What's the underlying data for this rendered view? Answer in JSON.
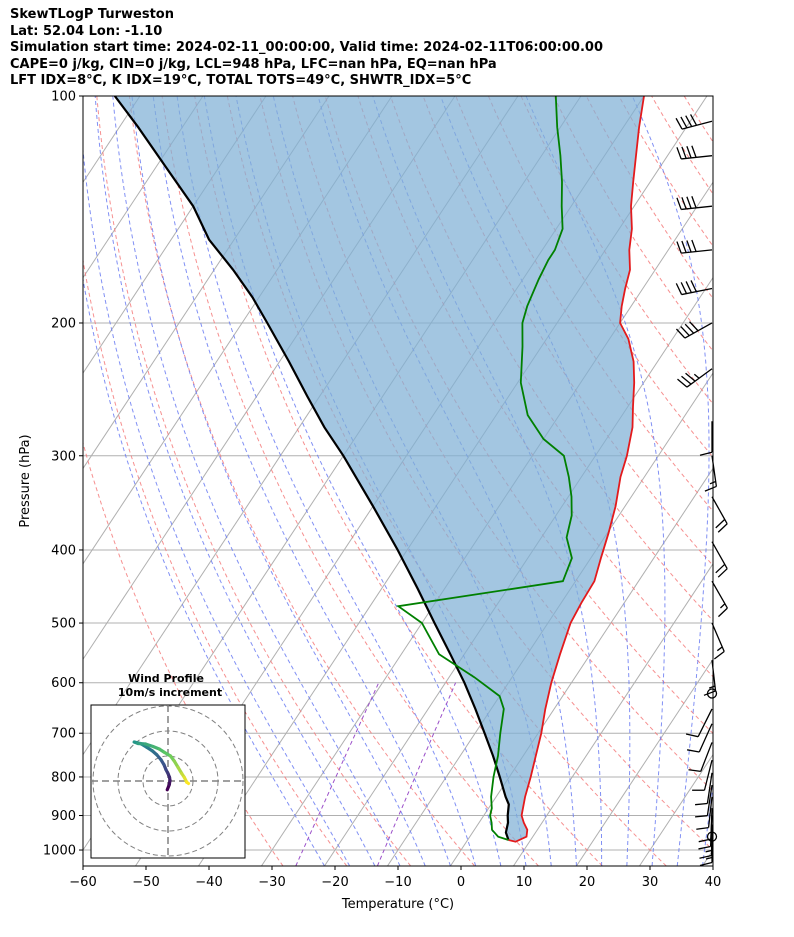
{
  "header": {
    "title": "SkewTLogP Turweston",
    "location": "Lat: 52.04   Lon: -1.10",
    "times": "Simulation start time: 2024-02-11_00:00:00, Valid time: 2024-02-11T06:00:00.00",
    "params": "CAPE=0 j/kg, CIN=0 j/kg, LCL=948 hPa, LFC=nan hPa, EQ=nan hPa",
    "indices": "LFT IDX=8°C, K IDX=19°C, TOTAL TOTS=49°C, SHWTR_IDX=5°C"
  },
  "chart_data": {
    "type": "line",
    "subtype": "skew-t log-p",
    "xlabel": "Temperature (°C)",
    "ylabel": "Pressure (hPa)",
    "xlim": [
      -60,
      40
    ],
    "ylim": [
      1050,
      100
    ],
    "y_scale": "log",
    "x_ticks": [
      -60,
      -50,
      -40,
      -30,
      -20,
      -10,
      0,
      10,
      20,
      30,
      40
    ],
    "x_tick_labels": [
      "−60",
      "−50",
      "−40",
      "−30",
      "−20",
      "−10",
      "0",
      "10",
      "20",
      "30",
      "40"
    ],
    "y_ticks": [
      1000,
      900,
      800,
      700,
      600,
      500,
      400,
      300,
      200,
      100
    ],
    "y_tick_labels": [
      "1000",
      "900",
      "800",
      "700",
      "600",
      "500",
      "400",
      "300",
      "200",
      "100"
    ],
    "grid": true,
    "colors": {
      "temperature": "#e31a1c",
      "dewpoint": "#008000",
      "parcel": "#000000",
      "cape_fill": "#7fb0d6",
      "dry_adiabat": "#f47c7c",
      "moist_adiabat": "#6b7cf2",
      "mixing_ratio": "#9b4fc9",
      "isotherm": "#b0b0b0"
    },
    "series": [
      {
        "key": "temperature",
        "points": [
          [
            6.5,
            970
          ],
          [
            7.8,
            975
          ],
          [
            9.0,
            960
          ],
          [
            8.4,
            940
          ],
          [
            7.1,
            920
          ],
          [
            6.0,
            900
          ],
          [
            4.6,
            850
          ],
          [
            3.4,
            800
          ],
          [
            2.0,
            750
          ],
          [
            0.5,
            700
          ],
          [
            -1.4,
            650
          ],
          [
            -3.2,
            600
          ],
          [
            -4.8,
            550
          ],
          [
            -6.4,
            500
          ],
          [
            -6.8,
            470
          ],
          [
            -7.0,
            440
          ],
          [
            -8.4,
            410
          ],
          [
            -9.8,
            380
          ],
          [
            -11.5,
            350
          ],
          [
            -13.8,
            320
          ],
          [
            -15.0,
            300
          ],
          [
            -17.1,
            275
          ],
          [
            -19.2,
            258
          ],
          [
            -21.5,
            240
          ],
          [
            -23.8,
            225
          ],
          [
            -27.0,
            210
          ],
          [
            -30.0,
            200
          ],
          [
            -31.5,
            190
          ],
          [
            -32.8,
            180
          ],
          [
            -34.0,
            170
          ],
          [
            -36.2,
            160
          ],
          [
            -38.0,
            150
          ],
          [
            -40.5,
            140
          ],
          [
            -42.7,
            130
          ],
          [
            -45.0,
            120
          ],
          [
            -47.5,
            110
          ],
          [
            -50.0,
            100
          ]
        ]
      },
      {
        "key": "dewpoint",
        "points": [
          [
            6.5,
            970
          ],
          [
            4.5,
            960
          ],
          [
            2.8,
            940
          ],
          [
            2.0,
            920
          ],
          [
            1.0,
            900
          ],
          [
            0.5,
            880
          ],
          [
            -0.8,
            850
          ],
          [
            -2.5,
            800
          ],
          [
            -4.0,
            750
          ],
          [
            -6.0,
            700
          ],
          [
            -8.0,
            650
          ],
          [
            -10.0,
            625
          ],
          [
            -16.0,
            590
          ],
          [
            -24.0,
            550
          ],
          [
            -30.0,
            500
          ],
          [
            -35.5,
            475
          ],
          [
            -12.0,
            440
          ],
          [
            -13.0,
            410
          ],
          [
            -16.0,
            385
          ],
          [
            -17.5,
            360
          ],
          [
            -19.5,
            340
          ],
          [
            -22.0,
            320
          ],
          [
            -25.0,
            300
          ],
          [
            -30.0,
            285
          ],
          [
            -35.0,
            265
          ],
          [
            -39.5,
            240
          ],
          [
            -43.0,
            215
          ],
          [
            -45.5,
            200
          ],
          [
            -46.5,
            190
          ],
          [
            -47.5,
            175
          ],
          [
            -48.0,
            165
          ],
          [
            -48.0,
            160
          ],
          [
            -49.0,
            150
          ],
          [
            -51.5,
            140
          ],
          [
            -54.0,
            130
          ],
          [
            -57.0,
            120
          ],
          [
            -60.5,
            110
          ],
          [
            -64.0,
            100
          ]
        ]
      },
      {
        "key": "parcel",
        "points": [
          [
            6.5,
            970
          ],
          [
            5.3,
            948
          ],
          [
            4.6,
            920
          ],
          [
            3.8,
            900
          ],
          [
            2.8,
            870
          ],
          [
            1.5,
            850
          ],
          [
            -1.5,
            800
          ],
          [
            -4.8,
            750
          ],
          [
            -8.5,
            700
          ],
          [
            -12.5,
            650
          ],
          [
            -17.0,
            600
          ],
          [
            -22.2,
            550
          ],
          [
            -28.0,
            500
          ],
          [
            -34.3,
            450
          ],
          [
            -41.5,
            400
          ],
          [
            -50.0,
            350
          ],
          [
            -60.0,
            300
          ],
          [
            -66.0,
            275
          ],
          [
            -72.0,
            250
          ],
          [
            -78.5,
            225
          ],
          [
            -86.0,
            200
          ],
          [
            -91.0,
            185
          ],
          [
            -97.0,
            170
          ],
          [
            -104.0,
            155
          ],
          [
            -110.0,
            140
          ],
          [
            -118.0,
            125
          ],
          [
            -127.0,
            110
          ],
          [
            -134.0,
            100
          ]
        ]
      }
    ],
    "wind_barbs": [
      {
        "p": 960,
        "calm": true
      },
      {
        "p": 945,
        "u": 0.0,
        "v": 14
      },
      {
        "p": 925,
        "u": 0.2,
        "v": 13
      },
      {
        "p": 900,
        "u": 0.5,
        "v": 11
      },
      {
        "p": 880,
        "u": 0.3,
        "v": 8
      },
      {
        "p": 850,
        "u": 1.0,
        "v": 9
      },
      {
        "p": 820,
        "u": 1.5,
        "v": 10
      },
      {
        "p": 790,
        "u": 1.5,
        "v": 10
      },
      {
        "p": 760,
        "u": 2.5,
        "v": 10
      },
      {
        "p": 720,
        "u": 3.5,
        "v": 9
      },
      {
        "p": 680,
        "u": 4.5,
        "v": 10
      },
      {
        "p": 650,
        "u": 5.0,
        "v": 10
      },
      {
        "p": 620,
        "calm": true
      },
      {
        "p": 560,
        "u": -1.5,
        "v": 13
      },
      {
        "p": 500,
        "u": -6,
        "v": 14
      },
      {
        "p": 440,
        "u": -8,
        "v": 14
      },
      {
        "p": 390,
        "u": -9,
        "v": 16
      },
      {
        "p": 340,
        "u": -9,
        "v": 16
      },
      {
        "p": 300,
        "u": -2,
        "v": 14
      },
      {
        "p": 270,
        "u": 0,
        "v": 12
      },
      {
        "p": 230,
        "u": 30,
        "v": 22
      },
      {
        "p": 200,
        "u": 36,
        "v": 20
      },
      {
        "p": 180,
        "u": 40,
        "v": 8
      },
      {
        "p": 160,
        "u": 38,
        "v": 4
      },
      {
        "p": 140,
        "u": 38,
        "v": 4
      },
      {
        "p": 120,
        "u": 38,
        "v": 4
      },
      {
        "p": 108,
        "u": 38,
        "v": 10
      }
    ],
    "hodograph": {
      "title": "Wind Profile",
      "subtitle": "10m/s increment",
      "ring_interval": 10,
      "rings": 3,
      "points": [
        [
          -0.3,
          -3.5
        ],
        [
          0.5,
          -1.5
        ],
        [
          0.8,
          0.2
        ],
        [
          0.6,
          1.5
        ],
        [
          0.0,
          3.0
        ],
        [
          -0.8,
          4.5
        ],
        [
          -1.6,
          6.5
        ],
        [
          -2.8,
          8.5
        ],
        [
          -4.5,
          10.5
        ],
        [
          -6.2,
          12.0
        ],
        [
          -8.5,
          13.5
        ],
        [
          -11.0,
          15.0
        ],
        [
          -13.5,
          15.6
        ],
        [
          -12.0,
          15.0
        ],
        [
          -9.0,
          14.8
        ],
        [
          -6.0,
          13.8
        ],
        [
          -3.5,
          12.8
        ],
        [
          -1.5,
          11.5
        ],
        [
          1.0,
          10.0
        ],
        [
          2.5,
          8.0
        ],
        [
          4.0,
          5.5
        ],
        [
          5.5,
          3.0
        ],
        [
          6.5,
          1.5
        ],
        [
          7.5,
          -0.5
        ],
        [
          8.2,
          -1.0
        ]
      ]
    }
  }
}
